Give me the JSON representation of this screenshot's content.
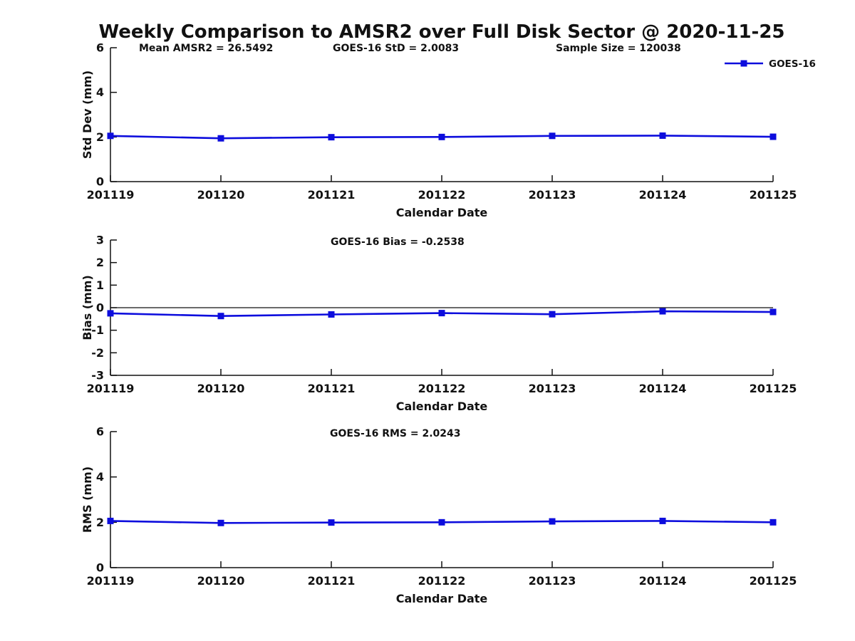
{
  "figure": {
    "title": "Weekly Comparison to AMSR2 over Full Disk Sector @ 2020-11-25"
  },
  "colors": {
    "series": "#0d0ddd",
    "axis": "#111111",
    "text": "#111111",
    "background": "#ffffff"
  },
  "legend": {
    "label": "GOES-16",
    "position": "top-right"
  },
  "chart_data": [
    {
      "type": "line",
      "name": "std-dev-panel",
      "annotations": [
        "Mean AMSR2 = 26.5492",
        "GOES-16 StD = 2.0083",
        "Sample Size = 120038"
      ],
      "categories": [
        "201119",
        "201120",
        "201121",
        "201122",
        "201123",
        "201124",
        "201125"
      ],
      "series": [
        {
          "name": "GOES-16",
          "values": [
            2.05,
            1.94,
            1.99,
            2.0,
            2.05,
            2.06,
            2.01
          ]
        }
      ],
      "xlabel": "Calendar Date",
      "ylabel": "Std Dev (mm)",
      "ylim": [
        0,
        6
      ],
      "yticks": [
        0,
        2,
        4,
        6
      ],
      "grid": false,
      "legend": {
        "label": "GOES-16"
      }
    },
    {
      "type": "line",
      "name": "bias-panel",
      "title": "GOES-16 Bias  = -0.2538",
      "categories": [
        "201119",
        "201120",
        "201121",
        "201122",
        "201123",
        "201124",
        "201125"
      ],
      "series": [
        {
          "name": "GOES-16",
          "values": [
            -0.25,
            -0.37,
            -0.3,
            -0.24,
            -0.29,
            -0.16,
            -0.19
          ]
        }
      ],
      "xlabel": "Calendar Date",
      "ylabel": "Bias (mm)",
      "ylim": [
        -3,
        3
      ],
      "yticks": [
        -3,
        -2,
        -1,
        0,
        1,
        2,
        3
      ],
      "zero_line": true,
      "grid": false
    },
    {
      "type": "line",
      "name": "rms-panel",
      "title": "GOES-16 RMS = 2.0243",
      "categories": [
        "201119",
        "201120",
        "201121",
        "201122",
        "201123",
        "201124",
        "201125"
      ],
      "series": [
        {
          "name": "GOES-16",
          "values": [
            2.06,
            1.97,
            1.99,
            2.0,
            2.04,
            2.06,
            2.0
          ]
        }
      ],
      "xlabel": "Calendar Date",
      "ylabel": "RMS (mm)",
      "ylim": [
        0,
        6
      ],
      "yticks": [
        0,
        2,
        4,
        6
      ],
      "grid": false
    }
  ]
}
